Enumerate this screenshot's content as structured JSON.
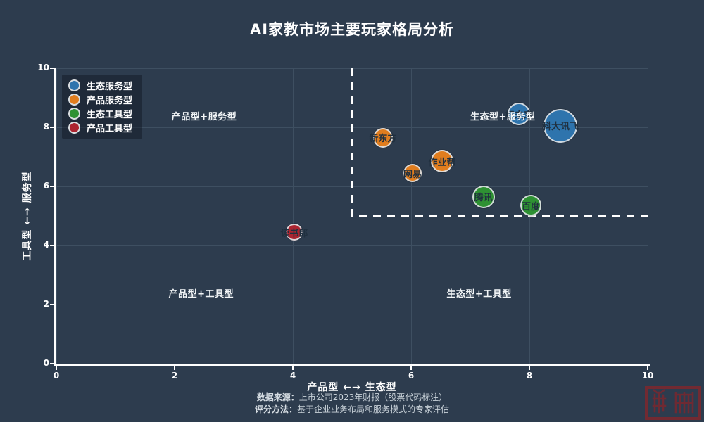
{
  "title": "AI家教市场主要玩家格局分析",
  "footer": {
    "source_label": "数据来源：",
    "source_text": "上市公司2023年财报（股票代码标注）",
    "method_label": "评分方法：",
    "method_text": "基于企业业务布局和服务模式的专家评估"
  },
  "stamp": {
    "icon": "red-seal-stamp",
    "color": "#722a32"
  },
  "colors": {
    "background": "#2d3c4e",
    "gridline": "#3e4f61",
    "axis": "#ffffff",
    "dashed_threshold": "#ffffff",
    "bubble_ring": "#dee2e5",
    "bubble_text": "#20303f"
  },
  "chart_data": {
    "type": "scatter",
    "title": "AI家教市场主要玩家格局分析",
    "xlabel": "产品型 ←→ 生态型",
    "ylabel": "工具型 ←→ 服务型",
    "xlim": [
      0,
      10
    ],
    "ylim": [
      0,
      10
    ],
    "xticks": [
      0,
      2,
      4,
      6,
      8,
      10
    ],
    "yticks": [
      0,
      2,
      4,
      6,
      8,
      10
    ],
    "grid": true,
    "legend_position": "top-left",
    "series": [
      {
        "name": "生态服务型",
        "color": "#2e74ad",
        "points": [
          {
            "label": "科大讯飞",
            "x": 8.5,
            "y": 8.1,
            "r": 22
          },
          {
            "label": "好未来",
            "x": 7.8,
            "y": 8.5,
            "r": 14
          }
        ]
      },
      {
        "name": "产品服务型",
        "color": "#e07d1e",
        "points": [
          {
            "label": "新东方",
            "x": 5.5,
            "y": 7.7,
            "r": 12
          },
          {
            "label": "作业帮",
            "x": 6.5,
            "y": 6.9,
            "r": 14
          },
          {
            "label": "网易",
            "x": 6.0,
            "y": 6.5,
            "r": 11
          }
        ]
      },
      {
        "name": "生态工具型",
        "color": "#2e9133",
        "points": [
          {
            "label": "腾讯",
            "x": 7.2,
            "y": 5.7,
            "r": 14
          },
          {
            "label": "百度",
            "x": 8.0,
            "y": 5.4,
            "r": 13
          }
        ]
      },
      {
        "name": "产品工具型",
        "color": "#ac2430",
        "points": [
          {
            "label": "读书郎",
            "x": 4.0,
            "y": 4.5,
            "r": 10
          }
        ]
      }
    ],
    "quadrant_labels": [
      {
        "text": "产品型+服务型",
        "x": 2.5,
        "y": 8.4
      },
      {
        "text": "生态型+服务型",
        "x": 7.55,
        "y": 8.4
      },
      {
        "text": "产品型+工具型",
        "x": 2.45,
        "y": 2.4
      },
      {
        "text": "生态型+工具型",
        "x": 7.15,
        "y": 2.4
      }
    ],
    "threshold": {
      "x": 5,
      "y": 5
    }
  }
}
